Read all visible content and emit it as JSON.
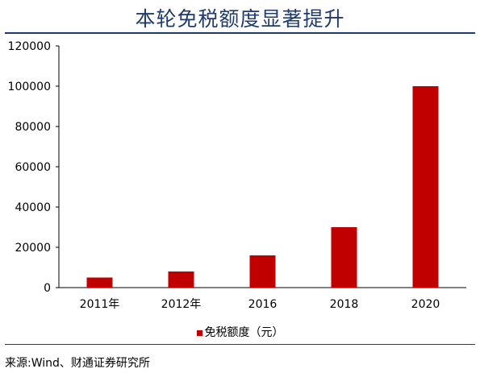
{
  "title": "本轮免税额度显著提升",
  "source": "来源:Wind、财通证券研究所",
  "chart_data": {
    "type": "bar",
    "title": "本轮免税额度显著提升",
    "xlabel": "",
    "ylabel": "",
    "categories": [
      "2011年",
      "2012年",
      "2016",
      "2018",
      "2020"
    ],
    "series": [
      {
        "name": "免税额度（元）",
        "values": [
          5000,
          8000,
          16000,
          30000,
          100000
        ],
        "color": "#c00000"
      }
    ],
    "ylim": [
      0,
      120000
    ],
    "yticks": [
      0,
      20000,
      40000,
      60000,
      80000,
      100000,
      120000
    ],
    "grid": false,
    "legend_position": "bottom"
  }
}
